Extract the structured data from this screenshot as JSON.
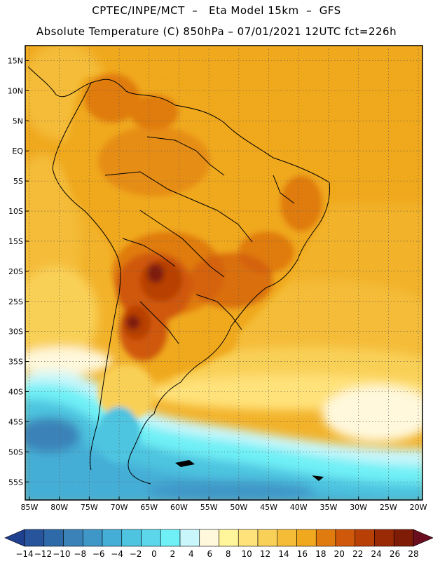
{
  "header": {
    "line1": "CPTEC/INPE/MCT  –   Eta Model 15km  –  GFS",
    "line2": "Absolute Temperature (C) 850hPa – 07/01/2021 12UTC fct=226h"
  },
  "map": {
    "lat_labels": [
      "15N",
      "10N",
      "5N",
      "EQ",
      "5S",
      "10S",
      "15S",
      "20S",
      "25S",
      "30S",
      "35S",
      "40S",
      "45S",
      "50S",
      "55S"
    ],
    "lon_labels": [
      "85W",
      "80W",
      "75W",
      "70W",
      "65W",
      "60W",
      "55W",
      "50W",
      "45W",
      "40W",
      "35W",
      "30W",
      "25W",
      "20W"
    ],
    "lat_values": [
      15,
      10,
      5,
      0,
      -5,
      -10,
      -15,
      -20,
      -25,
      -30,
      -35,
      -40,
      -45,
      -50,
      -55
    ],
    "lon_values": [
      -85,
      -80,
      -75,
      -70,
      -65,
      -60,
      -55,
      -50,
      -45,
      -40,
      -35,
      -30,
      -25,
      -20
    ]
  },
  "colorbar": {
    "labels": [
      "−14",
      "−12",
      "−10",
      "−8",
      "−6",
      "−4",
      "−2",
      "0",
      "2",
      "4",
      "6",
      "8",
      "10",
      "12",
      "14",
      "16",
      "18",
      "20",
      "22",
      "24",
      "26",
      "28"
    ],
    "colors": [
      "#1f3f8f",
      "#27549b",
      "#2f6aa8",
      "#3a82b8",
      "#3f97c8",
      "#44aed6",
      "#4ec4e0",
      "#5bd6ea",
      "#6ff0f6",
      "#c8f6fa",
      "#fff8dc",
      "#fff59a",
      "#ffe27a",
      "#f9d057",
      "#f4bc37",
      "#f0a81f",
      "#e07b10",
      "#d0580a",
      "#b83f05",
      "#9a2a05",
      "#7e1c08",
      "#6a0d1e"
    ]
  }
}
